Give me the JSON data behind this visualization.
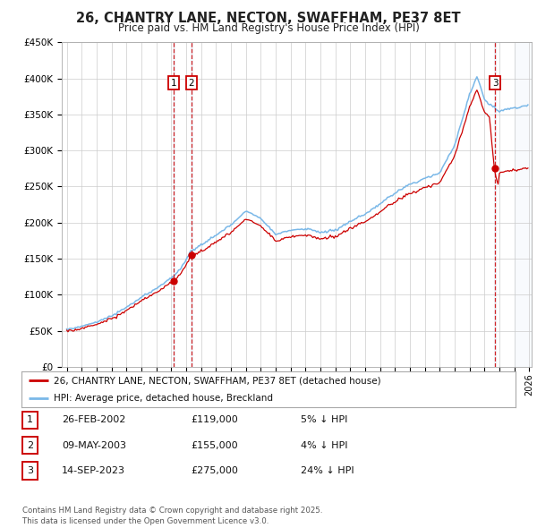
{
  "title": "26, CHANTRY LANE, NECTON, SWAFFHAM, PE37 8ET",
  "subtitle": "Price paid vs. HM Land Registry's House Price Index (HPI)",
  "ylim": [
    0,
    450000
  ],
  "yticks": [
    0,
    50000,
    100000,
    150000,
    200000,
    250000,
    300000,
    350000,
    400000,
    450000
  ],
  "ytick_labels": [
    "£0",
    "£50K",
    "£100K",
    "£150K",
    "£200K",
    "£250K",
    "£300K",
    "£350K",
    "£400K",
    "£450K"
  ],
  "hpi_color": "#7ab8e8",
  "price_color": "#cc0000",
  "purchase_dates": [
    "2002-02-26",
    "2003-05-09",
    "2023-09-14"
  ],
  "purchase_prices": [
    119000,
    155000,
    275000
  ],
  "purchase_labels": [
    "1",
    "2",
    "3"
  ],
  "legend_line1": "26, CHANTRY LANE, NECTON, SWAFFHAM, PE37 8ET (detached house)",
  "legend_line2": "HPI: Average price, detached house, Breckland",
  "table_rows": [
    {
      "label": "1",
      "date": "26-FEB-2002",
      "price": "£119,000",
      "note": "5% ↓ HPI"
    },
    {
      "label": "2",
      "date": "09-MAY-2003",
      "price": "£155,000",
      "note": "4% ↓ HPI"
    },
    {
      "label": "3",
      "date": "14-SEP-2023",
      "price": "£275,000",
      "note": "24% ↓ HPI"
    }
  ],
  "footer": "Contains HM Land Registry data © Crown copyright and database right 2025.\nThis data is licensed under the Open Government Licence v3.0.",
  "background_color": "#ffffff",
  "grid_color": "#cccccc",
  "hpi_key_years": [
    1995.0,
    1996.0,
    1997.0,
    1998.0,
    1999.0,
    2000.0,
    2001.0,
    2002.0,
    2003.0,
    2004.0,
    2005.0,
    2006.0,
    2007.0,
    2008.0,
    2009.0,
    2010.0,
    2011.0,
    2012.0,
    2013.0,
    2014.0,
    2015.0,
    2016.0,
    2017.0,
    2018.0,
    2019.0,
    2020.0,
    2021.0,
    2022.0,
    2022.5,
    2023.0,
    2023.75,
    2024.5,
    2025.5,
    2026.0
  ],
  "hpi_key_vals": [
    52000,
    56000,
    62000,
    70000,
    82000,
    95000,
    108000,
    122000,
    143000,
    168000,
    182000,
    195000,
    215000,
    205000,
    182000,
    188000,
    190000,
    185000,
    188000,
    200000,
    210000,
    225000,
    240000,
    252000,
    260000,
    268000,
    305000,
    375000,
    400000,
    370000,
    350000,
    355000,
    358000,
    360000
  ]
}
